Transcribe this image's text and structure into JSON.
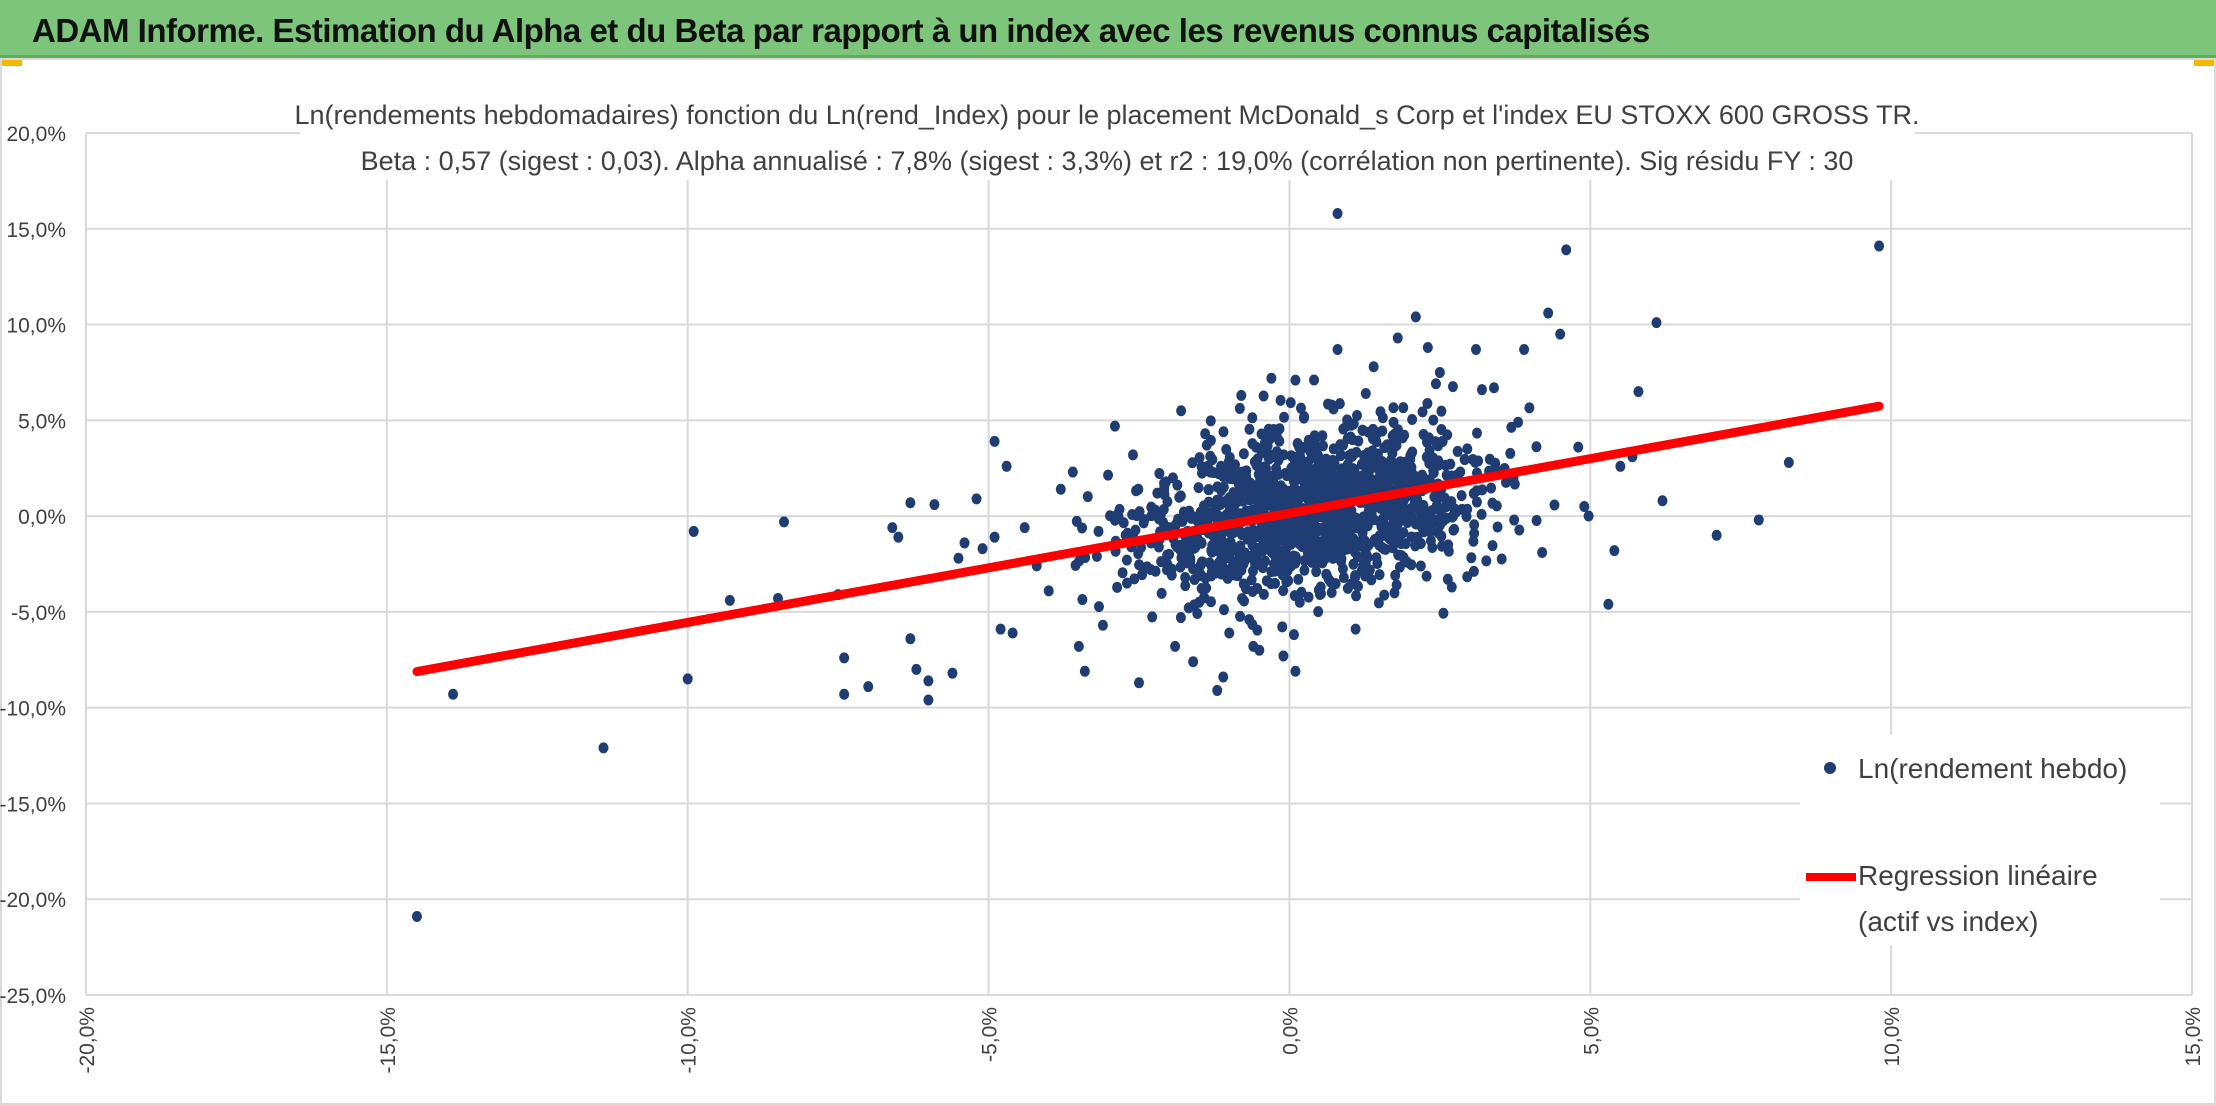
{
  "header": {
    "title": "ADAM Informe. Estimation du Alpha et du Beta par rapport à un index avec les revenus connus capitalisés"
  },
  "colors": {
    "header_bg": "#7dc57a",
    "corner_accent": "#f5b800",
    "points": "#1f3d73",
    "regression": "#ff0000",
    "grid": "#d9d9d9"
  },
  "chart_data": {
    "type": "scatter",
    "title_line1": "Ln(rendements hebdomadaires) fonction du Ln(rend_Index) pour le placement McDonald_s Corp et l'index EU STOXX 600 GROSS TR.",
    "title_line2": "Beta : 0,57 (sigest : 0,03). Alpha annualisé : 7,8% (sigest : 3,3%) et r2 : 19,0% (corrélation non pertinente). Sig résidu FY : 30",
    "xlim": [
      -20,
      15
    ],
    "ylim": [
      -25,
      20
    ],
    "x_ticks": [
      -20,
      -15,
      -10,
      -5,
      0,
      5,
      10,
      15
    ],
    "y_ticks": [
      -25,
      -20,
      -15,
      -10,
      -5,
      0,
      5,
      10,
      15,
      20
    ],
    "x_tick_labels": [
      "-20,0%",
      "-15,0%",
      "-10,0%",
      "-5,0%",
      "0,0%",
      "5,0%",
      "10,0%",
      "15,0%"
    ],
    "y_tick_labels": [
      "-25,0%",
      "-20,0%",
      "-15,0%",
      "-10,0%",
      "-5,0%",
      "0,0%",
      "5,0%",
      "10,0%",
      "15,0%",
      "20,0%"
    ],
    "grid": "vertical and horizontal major gridlines",
    "legend_position": "right",
    "series": [
      {
        "name": "Ln(rendement hebdo)",
        "kind": "points",
        "points": [
          [
            -14.5,
            -20.9
          ],
          [
            -13.9,
            -9.3
          ],
          [
            -11.4,
            -12.1
          ],
          [
            -10.0,
            -8.5
          ],
          [
            -9.9,
            -0.8
          ],
          [
            -9.3,
            -4.4
          ],
          [
            -8.5,
            -4.3
          ],
          [
            -8.4,
            -0.3
          ],
          [
            -7.5,
            -4.1
          ],
          [
            -7.4,
            -7.4
          ],
          [
            -7.4,
            -9.3
          ],
          [
            -7.0,
            -8.9
          ],
          [
            -6.6,
            -0.6
          ],
          [
            -6.5,
            -1.1
          ],
          [
            -6.3,
            -6.4
          ],
          [
            -6.3,
            0.7
          ],
          [
            -6.2,
            -8.0
          ],
          [
            -6.0,
            -8.6
          ],
          [
            -6.0,
            -9.6
          ],
          [
            -5.9,
            0.6
          ],
          [
            -5.6,
            -8.2
          ],
          [
            -5.5,
            -2.2
          ],
          [
            -5.4,
            -1.4
          ],
          [
            -5.2,
            0.9
          ],
          [
            -5.1,
            -1.7
          ],
          [
            -4.9,
            -1.1
          ],
          [
            -4.9,
            3.9
          ],
          [
            -4.8,
            -5.9
          ],
          [
            -4.7,
            2.6
          ],
          [
            -4.6,
            -6.1
          ],
          [
            -4.4,
            -0.6
          ],
          [
            -4.2,
            -2.6
          ],
          [
            -4.0,
            -3.9
          ],
          [
            -3.8,
            1.4
          ],
          [
            -3.6,
            2.3
          ],
          [
            -3.5,
            -6.8
          ],
          [
            -3.4,
            -8.1
          ],
          [
            -3.2,
            -2.1
          ],
          [
            -3.1,
            -5.7
          ],
          [
            -2.9,
            4.7
          ],
          [
            -2.7,
            -3.5
          ],
          [
            -2.6,
            3.2
          ],
          [
            -2.5,
            -8.7
          ],
          [
            -2.3,
            -1.4
          ],
          [
            -2.0,
            -2.0
          ],
          [
            -1.9,
            -6.8
          ],
          [
            -1.8,
            5.5
          ],
          [
            -1.6,
            -7.6
          ],
          [
            -1.5,
            -4.5
          ],
          [
            -1.4,
            4.3
          ],
          [
            -1.2,
            -9.1
          ],
          [
            -1.1,
            -8.4
          ],
          [
            -1.0,
            -6.1
          ],
          [
            -0.8,
            6.3
          ],
          [
            -0.6,
            -6.8
          ],
          [
            -0.5,
            -7.0
          ],
          [
            -0.3,
            7.2
          ],
          [
            -0.1,
            -7.3
          ],
          [
            0.1,
            7.1
          ],
          [
            0.1,
            -8.1
          ],
          [
            0.8,
            15.8
          ],
          [
            0.8,
            8.7
          ],
          [
            1.1,
            -5.9
          ],
          [
            1.4,
            7.8
          ],
          [
            1.8,
            9.3
          ],
          [
            2.1,
            10.4
          ],
          [
            2.3,
            8.8
          ],
          [
            2.5,
            7.5
          ],
          [
            3.1,
            8.7
          ],
          [
            3.2,
            6.6
          ],
          [
            3.4,
            6.7
          ],
          [
            3.8,
            4.9
          ],
          [
            3.9,
            8.7
          ],
          [
            4.3,
            10.6
          ],
          [
            4.5,
            9.5
          ],
          [
            4.6,
            13.9
          ],
          [
            5.3,
            -4.6
          ],
          [
            5.4,
            -1.8
          ],
          [
            5.8,
            6.5
          ],
          [
            6.1,
            10.1
          ],
          [
            6.2,
            0.8
          ],
          [
            7.1,
            -1.0
          ],
          [
            7.8,
            -0.2
          ],
          [
            8.3,
            2.8
          ],
          [
            9.8,
            14.1
          ],
          [
            5.5,
            2.6
          ],
          [
            5.7,
            3.1
          ],
          [
            4.9,
            0.5
          ],
          [
            4.8,
            3.6
          ],
          [
            4.2,
            -1.9
          ]
        ]
      },
      {
        "name": "Regression linéaire",
        "name_line2": "(actif vs index)",
        "kind": "line",
        "beta": 0.57,
        "intercept": 0.15,
        "x_range": [
          -14.5,
          9.8
        ]
      }
    ]
  }
}
